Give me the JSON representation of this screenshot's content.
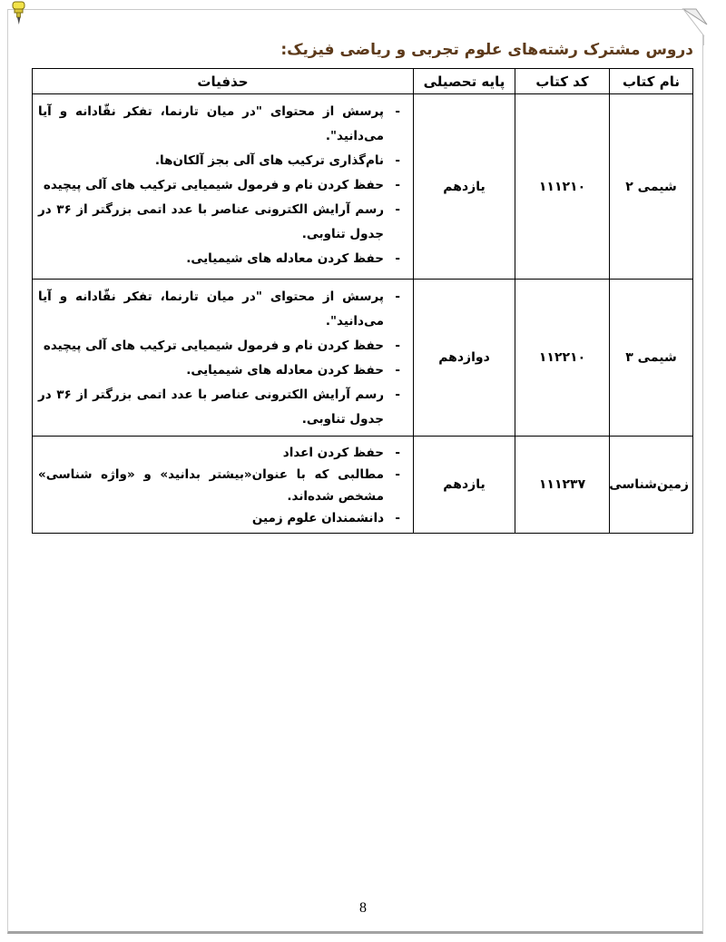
{
  "document": {
    "title": "دروس مشترک رشته‌های علوم تجربی و ریاضی فیزیک:",
    "page_number": "8"
  },
  "colors": {
    "title_text": "#5d3a1a",
    "table_border": "#000000",
    "frame_border": "#c9c9c9",
    "frame_shadow": "#a3a3a3",
    "pushpin_yellow": "#f3e34a"
  },
  "icons": {
    "pushpin": "pushpin-icon",
    "page_curl": "page-curl-icon"
  },
  "table": {
    "headers": {
      "book_name": "نام کتاب",
      "book_code": "کد کتاب",
      "grade": "پایه تحصیلی",
      "deletions": "حذفیات"
    },
    "rows": [
      {
        "book_name": "شیمی ۲",
        "book_code": "۱۱۱۲۱۰",
        "grade": "یازدهم",
        "deletions": [
          "پرسش از محتوای \"در میان تارنما، تفکر نقّادانه و آیا می‌دانید\".",
          "نام‌گذاری ترکیب های آلی بجز آلکان‌ها.",
          "حفظ کردن نام و فرمول شیمیایی ترکیب های آلی پیچیده",
          "رسم آرایش الکترونی عناصر با عدد اتمی بزرگتر از ۳۶ در جدول تناوبی.",
          "حفظ کردن معادله های شیمیایی."
        ]
      },
      {
        "book_name": "شیمی ۳",
        "book_code": "۱۱۲۲۱۰",
        "grade": "دوازدهم",
        "deletions": [
          "پرسش از محتوای \"در میان تارنما، تفکر نقّادانه و آیا می‌دانید\".",
          "حفظ کردن نام و فرمول شیمیایی ترکیب های آلی پیچیده",
          "حفظ کردن معادله های شیمیایی.",
          "رسم آرایش الکترونی عناصر با عدد اتمی بزرگتر از ۳۶ در جدول تناوبی."
        ]
      },
      {
        "book_name": "زمین‌شناسی",
        "book_code": "۱۱۱۲۳۷",
        "grade": "یازدهم",
        "deletions": [
          "حفظ کردن اعداد",
          "مطالبی که با عنوان«بیشتر بدانید» و «واژه شناسی» مشخص شده‌اند.",
          "دانشمندان علوم زمین"
        ]
      }
    ]
  }
}
